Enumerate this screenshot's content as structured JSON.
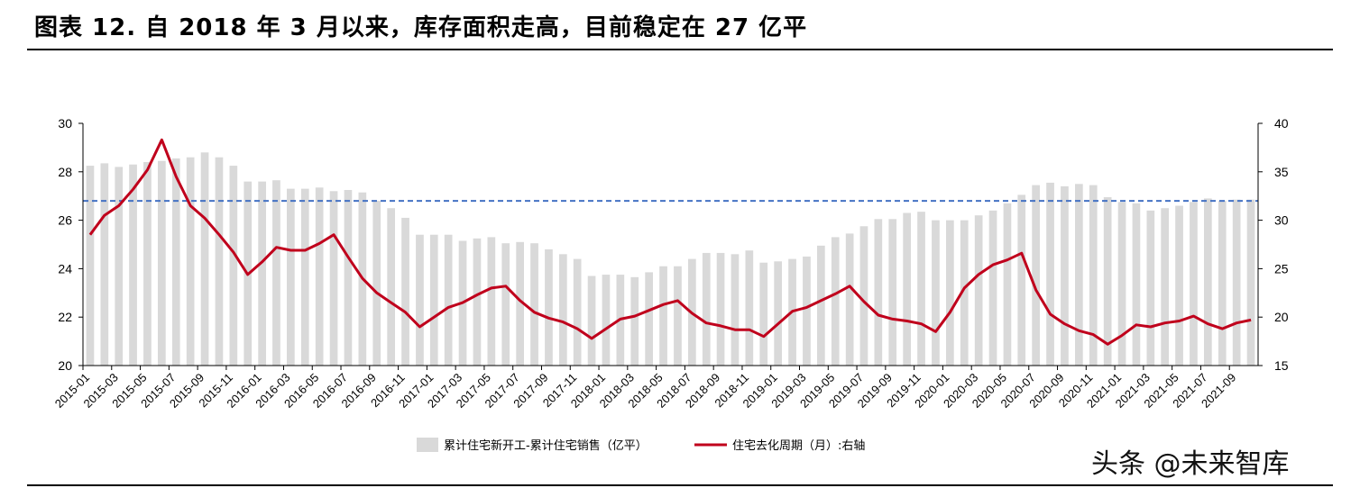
{
  "title": "图表 12. 自 2018 年 3 月以来，库存面积走高，目前稳定在 27 亿平",
  "watermark": "头条 @未来智库",
  "colors": {
    "bar": "#d9d9d9",
    "line": "#c0001c",
    "reference": "#4472c4",
    "axis": "#000000"
  },
  "chart_data": {
    "type": "bar",
    "categories": [
      "2015-01",
      "2015-02",
      "2015-03",
      "2015-04",
      "2015-05",
      "2015-06",
      "2015-07",
      "2015-08",
      "2015-09",
      "2015-10",
      "2015-11",
      "2015-12",
      "2016-01",
      "2016-02",
      "2016-03",
      "2016-04",
      "2016-05",
      "2016-06",
      "2016-07",
      "2016-08",
      "2016-09",
      "2016-10",
      "2016-11",
      "2016-12",
      "2017-01",
      "2017-02",
      "2017-03",
      "2017-04",
      "2017-05",
      "2017-06",
      "2017-07",
      "2017-08",
      "2017-09",
      "2017-10",
      "2017-11",
      "2017-12",
      "2018-01",
      "2018-02",
      "2018-03",
      "2018-04",
      "2018-05",
      "2018-06",
      "2018-07",
      "2018-08",
      "2018-09",
      "2018-10",
      "2018-11",
      "2018-12",
      "2019-01",
      "2019-02",
      "2019-03",
      "2019-04",
      "2019-05",
      "2019-06",
      "2019-07",
      "2019-08",
      "2019-09",
      "2019-10",
      "2019-11",
      "2019-12",
      "2020-01",
      "2020-02",
      "2020-03",
      "2020-04",
      "2020-05",
      "2020-06",
      "2020-07",
      "2020-08",
      "2020-09",
      "2020-10",
      "2020-11",
      "2020-12",
      "2021-01",
      "2021-02",
      "2021-03",
      "2021-04",
      "2021-05",
      "2021-06",
      "2021-07",
      "2021-08",
      "2021-09",
      "2021-10"
    ],
    "xtick_labels": [
      "2015-01",
      "2015-03",
      "2015-05",
      "2015-07",
      "2015-09",
      "2015-11",
      "2016-01",
      "2016-03",
      "2016-05",
      "2016-07",
      "2016-09",
      "2016-11",
      "2017-01",
      "2017-03",
      "2017-05",
      "2017-07",
      "2017-09",
      "2017-11",
      "2018-01",
      "2018-03",
      "2018-05",
      "2018-07",
      "2018-09",
      "2018-11",
      "2019-01",
      "2019-03",
      "2019-05",
      "2019-07",
      "2019-09",
      "2019-11",
      "2020-01",
      "2020-03",
      "2020-05",
      "2020-07",
      "2020-09",
      "2020-11",
      "2021-01",
      "2021-03",
      "2021-05",
      "2021-07",
      "2021-09"
    ],
    "series": [
      {
        "name": "累计住宅新开工-累计住宅销售（亿平）",
        "type": "bar",
        "axis": "left",
        "values": [
          28.25,
          28.35,
          28.2,
          28.3,
          28.4,
          28.45,
          28.55,
          28.6,
          28.8,
          28.6,
          28.25,
          27.6,
          27.6,
          27.65,
          27.3,
          27.3,
          27.35,
          27.2,
          27.25,
          27.15,
          26.8,
          26.5,
          26.1,
          25.4,
          25.4,
          25.4,
          25.15,
          25.25,
          25.3,
          25.05,
          25.1,
          25.05,
          24.8,
          24.6,
          24.4,
          23.7,
          23.75,
          23.75,
          23.65,
          23.85,
          24.1,
          24.1,
          24.4,
          24.65,
          24.65,
          24.6,
          24.75,
          24.25,
          24.3,
          24.4,
          24.5,
          24.95,
          25.3,
          25.45,
          25.75,
          26.05,
          26.05,
          26.3,
          26.35,
          26.0,
          26.0,
          26.0,
          26.2,
          26.4,
          26.7,
          27.05,
          27.45,
          27.55,
          27.4,
          27.5,
          27.45,
          26.95,
          26.75,
          26.7,
          26.4,
          26.5,
          26.6,
          26.75,
          26.9,
          26.8,
          26.85,
          26.85
        ]
      },
      {
        "name": "住宅去化周期（月）:右轴",
        "type": "line",
        "axis": "right",
        "values": [
          28.5,
          30.5,
          31.5,
          33.2,
          35.2,
          38.3,
          34.5,
          31.5,
          30.2,
          28.5,
          26.7,
          24.4,
          25.7,
          27.2,
          26.9,
          26.9,
          27.6,
          28.5,
          26.2,
          24.0,
          22.5,
          21.5,
          20.5,
          19.0,
          20.0,
          21.0,
          21.5,
          22.3,
          23.0,
          23.2,
          21.7,
          20.5,
          19.9,
          19.5,
          18.8,
          17.8,
          18.8,
          19.8,
          20.1,
          20.7,
          21.3,
          21.7,
          20.4,
          19.4,
          19.1,
          18.7,
          18.7,
          18.0,
          19.3,
          20.6,
          21.0,
          21.7,
          22.4,
          23.2,
          21.6,
          20.2,
          19.8,
          19.6,
          19.3,
          18.5,
          20.5,
          23.0,
          24.4,
          25.4,
          25.9,
          26.6,
          22.8,
          20.3,
          19.3,
          18.6,
          18.2,
          17.2,
          18.1,
          19.2,
          19.0,
          19.4,
          19.6,
          20.1,
          19.3,
          18.8,
          19.4,
          19.7
        ]
      }
    ],
    "reference_line": {
      "axis": "left",
      "value": 26.8,
      "style": "dashed"
    },
    "y_left": {
      "ylim": [
        20,
        30
      ],
      "ticks": [
        "20",
        "22",
        "24",
        "26",
        "28",
        "30"
      ]
    },
    "y_right": {
      "ylim": [
        15,
        40
      ],
      "ticks": [
        "15",
        "20",
        "25",
        "30",
        "35",
        "40"
      ]
    },
    "grid": false,
    "legend_position": "bottom"
  }
}
